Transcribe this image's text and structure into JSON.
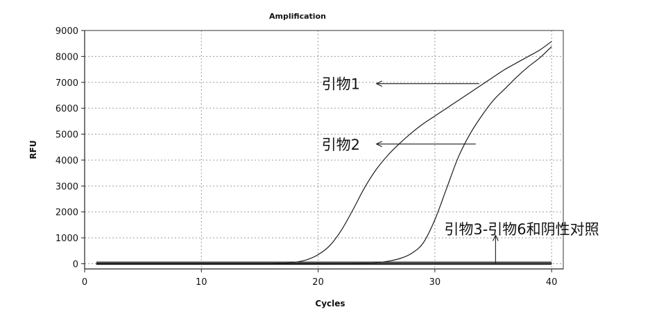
{
  "chart_data": {
    "type": "line",
    "title": "Amplification",
    "xlabel": "Cycles",
    "ylabel": "RFU",
    "xlim": [
      0,
      41
    ],
    "ylim": [
      -200,
      9000
    ],
    "x_ticks": [
      0,
      10,
      20,
      30,
      40
    ],
    "y_ticks": [
      0,
      1000,
      2000,
      3000,
      4000,
      5000,
      6000,
      7000,
      8000,
      9000
    ],
    "grid": true,
    "series": [
      {
        "name": "引物1",
        "x": [
          1,
          5,
          10,
          15,
          17,
          18,
          19,
          20,
          21,
          22,
          23,
          24,
          25,
          26,
          27,
          28,
          29,
          30,
          31,
          32,
          33,
          34,
          35,
          36,
          37,
          38,
          39,
          40
        ],
        "values": [
          0,
          0,
          0,
          0,
          20,
          60,
          150,
          350,
          700,
          1300,
          2100,
          2950,
          3650,
          4200,
          4650,
          5050,
          5400,
          5700,
          6000,
          6300,
          6600,
          6900,
          7200,
          7500,
          7750,
          8000,
          8250,
          8580
        ]
      },
      {
        "name": "引物2",
        "x": [
          1,
          5,
          10,
          15,
          20,
          24,
          25,
          26,
          27,
          28,
          29,
          30,
          31,
          32,
          33,
          34,
          35,
          36,
          37,
          38,
          39,
          40
        ],
        "values": [
          0,
          0,
          0,
          0,
          0,
          10,
          40,
          100,
          200,
          400,
          800,
          1700,
          2900,
          4100,
          5000,
          5700,
          6300,
          6750,
          7200,
          7600,
          7950,
          8380
        ]
      },
      {
        "name": "引物3-引物6和阴性对照",
        "x": [
          1,
          10,
          20,
          30,
          40
        ],
        "values": [
          -30,
          -30,
          -30,
          -30,
          -30
        ]
      }
    ],
    "annotations": [
      {
        "id": "primer1",
        "text": "引物1",
        "x": 20.3,
        "y": 6950,
        "arrow_from": [
          33.8,
          6950
        ],
        "arrow_to": [
          25,
          6950
        ]
      },
      {
        "id": "primer2",
        "text": "引物2",
        "x": 20.3,
        "y": 4620,
        "arrow_from": [
          33.5,
          4620
        ],
        "arrow_to": [
          25,
          4620
        ]
      },
      {
        "id": "primer3to6",
        "text": "引物3-引物6和阴性对照",
        "x": 30.8,
        "y": 1350,
        "arrow_from": [
          35.2,
          0
        ],
        "arrow_to": [
          35.2,
          1100
        ]
      }
    ]
  }
}
